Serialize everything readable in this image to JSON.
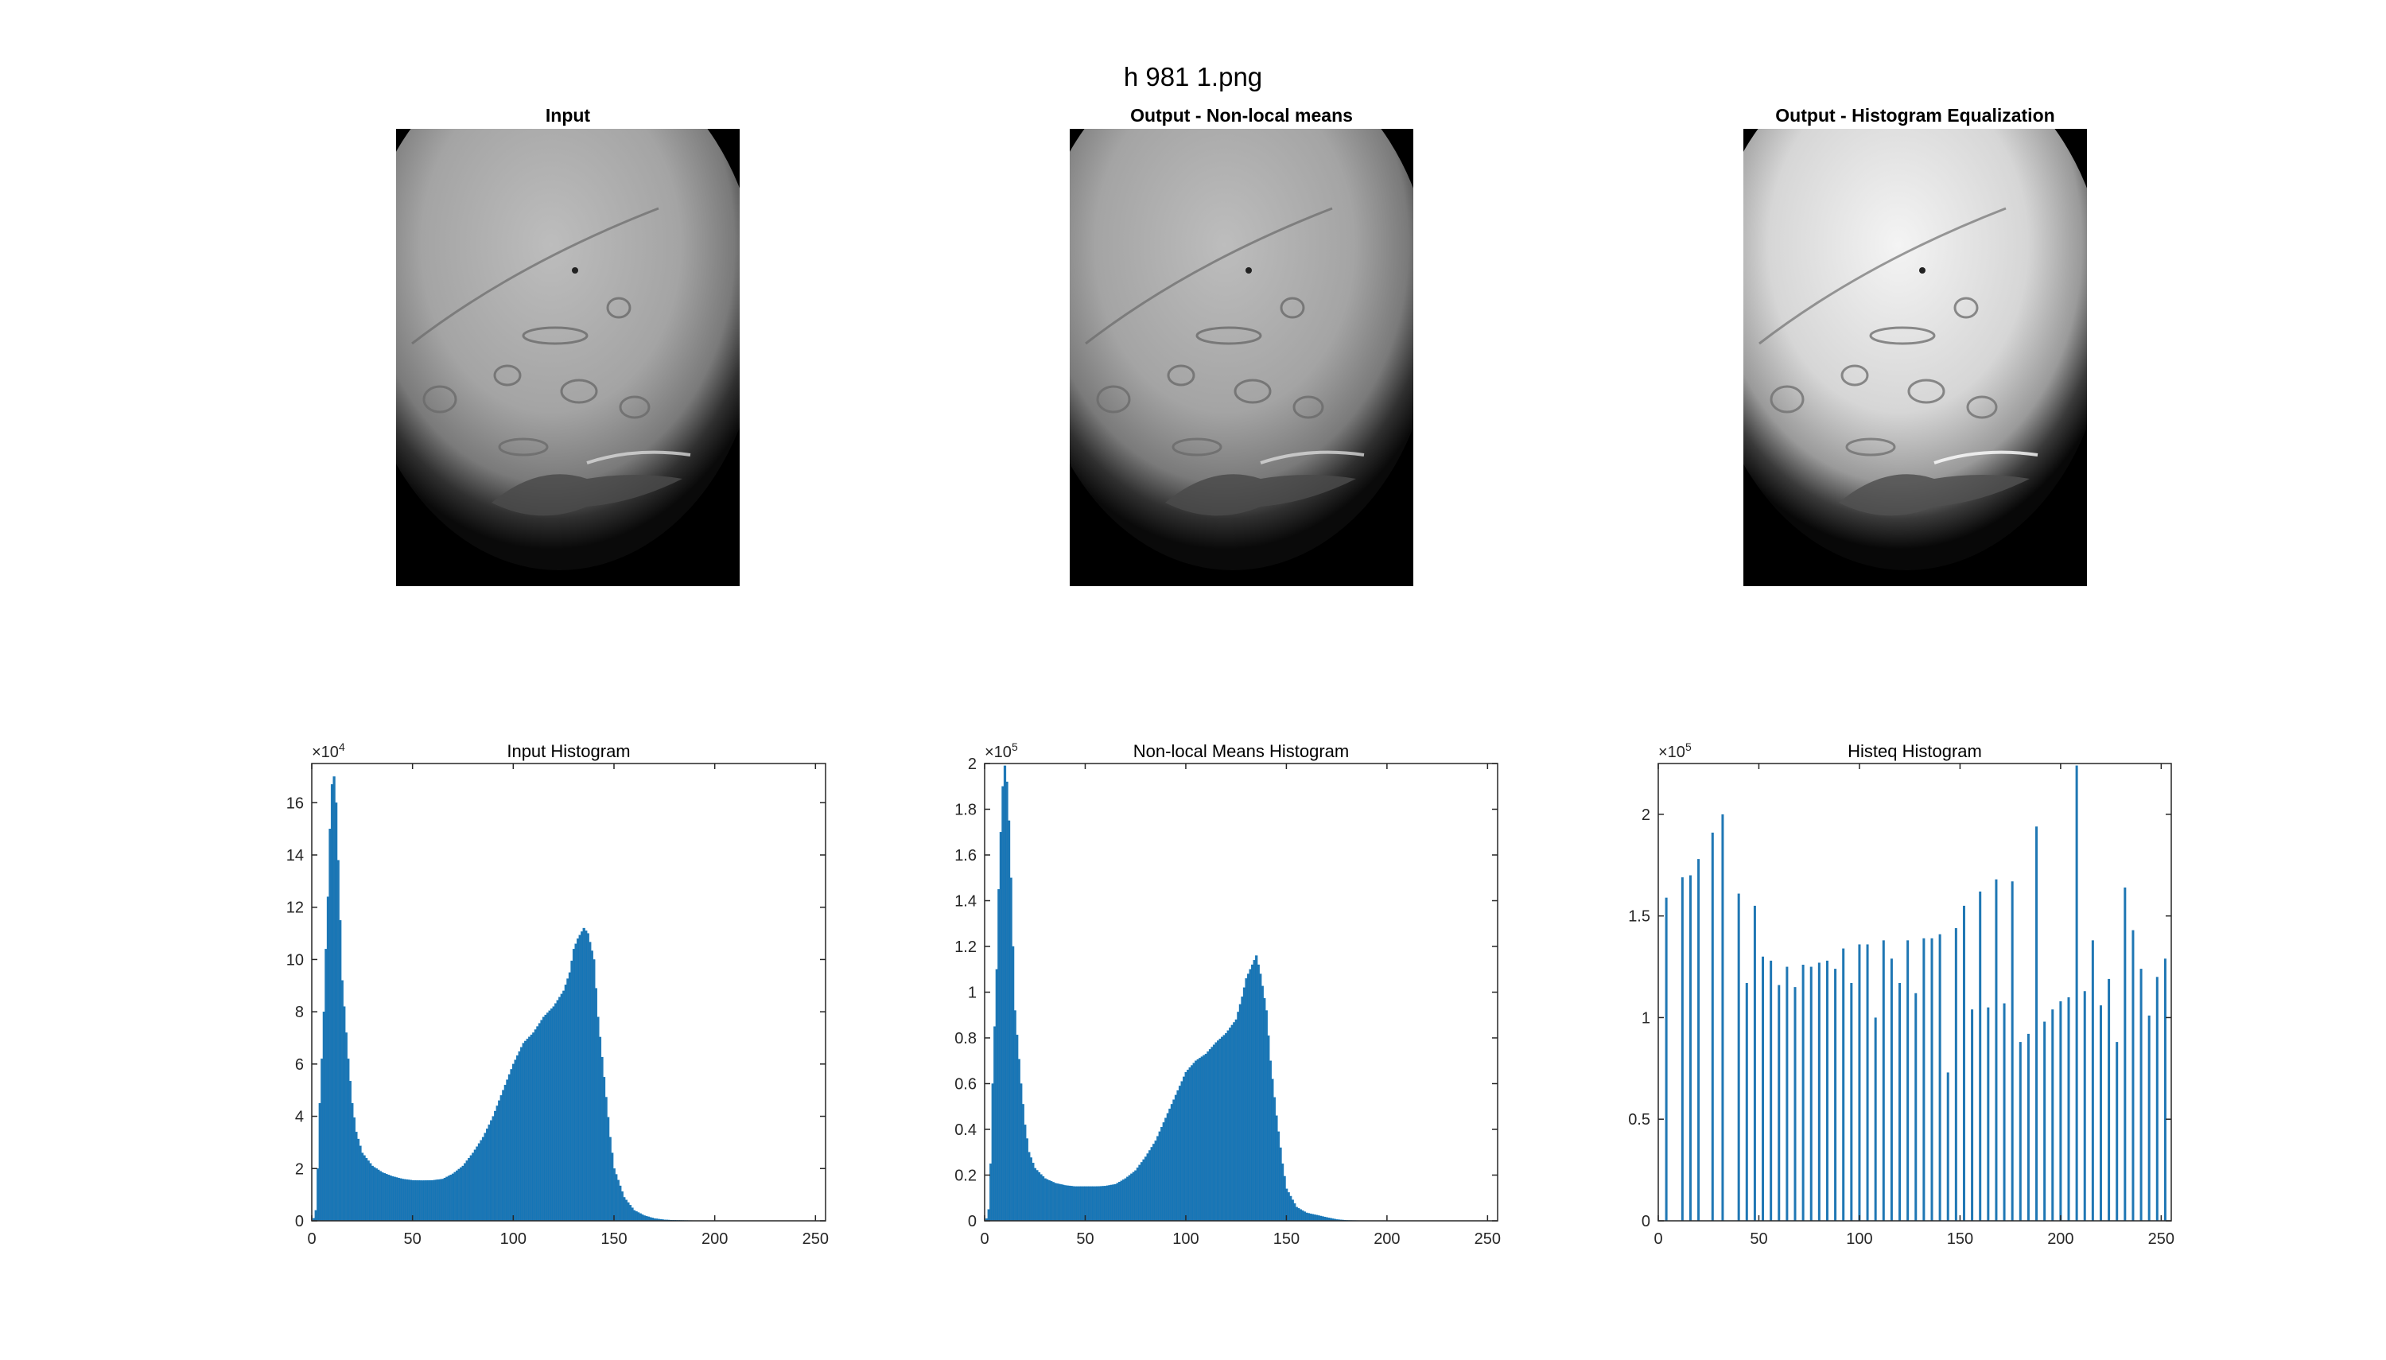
{
  "figure": {
    "title": "h 981 1.png"
  },
  "images": [
    {
      "title": "Input",
      "style": "original"
    },
    {
      "title": "Output - Non-local means",
      "style": "original"
    },
    {
      "title": "Output - Histogram Equalization",
      "style": "equalized"
    }
  ],
  "colors": {
    "bar": "#1f77b4",
    "bar_edge": "#0072bd",
    "axis": "#262626",
    "image_bg": "#000000"
  },
  "chart_data": [
    {
      "type": "bar",
      "title": "Input Histogram",
      "xlim": [
        0,
        255
      ],
      "ylim": [
        0,
        175000
      ],
      "x_ticks": [
        0,
        50,
        100,
        150,
        200,
        250
      ],
      "y_ticks": [
        0,
        20000,
        40000,
        60000,
        80000,
        100000,
        120000,
        140000,
        160000
      ],
      "y_tick_labels": [
        "0",
        "2",
        "4",
        "6",
        "8",
        "10",
        "12",
        "14",
        "16"
      ],
      "exponent_label": "×10",
      "exponent_power": "4",
      "bar_style": "dense",
      "x": [
        1,
        2,
        3,
        4,
        5,
        6,
        7,
        8,
        9,
        10,
        11,
        12,
        13,
        14,
        15,
        18,
        20,
        22,
        25,
        30,
        35,
        40,
        45,
        50,
        55,
        60,
        65,
        70,
        75,
        80,
        85,
        90,
        95,
        100,
        105,
        110,
        115,
        120,
        125,
        128,
        130,
        132,
        135,
        137,
        140,
        142,
        145,
        148,
        150,
        155,
        160,
        165,
        170,
        175,
        180,
        190,
        200,
        220,
        240,
        255
      ],
      "values": [
        1000,
        4000,
        20000,
        45000,
        62000,
        80000,
        104000,
        124000,
        150000,
        167000,
        170000,
        160000,
        138000,
        115000,
        92000,
        62000,
        45000,
        34000,
        26000,
        21000,
        18500,
        17000,
        16000,
        15500,
        15400,
        15500,
        16000,
        18000,
        21000,
        26000,
        32000,
        40000,
        50000,
        60000,
        68000,
        72000,
        78000,
        82000,
        88000,
        95000,
        104000,
        108000,
        112000,
        110000,
        100000,
        78000,
        55000,
        32000,
        20000,
        9000,
        4000,
        2000,
        900,
        400,
        200,
        100,
        50,
        10,
        5,
        0
      ]
    },
    {
      "type": "bar",
      "title": "Non-local Means Histogram",
      "xlim": [
        0,
        255
      ],
      "ylim": [
        0,
        200000
      ],
      "x_ticks": [
        0,
        50,
        100,
        150,
        200,
        250
      ],
      "y_ticks": [
        0,
        20000,
        40000,
        60000,
        80000,
        100000,
        120000,
        140000,
        160000,
        180000,
        200000
      ],
      "y_tick_labels": [
        "0",
        "0.2",
        "0.4",
        "0.6",
        "0.8",
        "1",
        "1.2",
        "1.4",
        "1.6",
        "1.8",
        "2"
      ],
      "exponent_label": "×10",
      "exponent_power": "5",
      "bar_style": "dense",
      "x": [
        1,
        2,
        3,
        4,
        5,
        6,
        7,
        8,
        9,
        10,
        11,
        12,
        13,
        14,
        15,
        18,
        20,
        22,
        25,
        30,
        35,
        40,
        45,
        50,
        55,
        60,
        65,
        70,
        75,
        80,
        85,
        90,
        95,
        100,
        105,
        110,
        115,
        120,
        125,
        128,
        130,
        132,
        135,
        137,
        140,
        142,
        145,
        148,
        150,
        155,
        160,
        165,
        170,
        175,
        180,
        190,
        200,
        220,
        240,
        255
      ],
      "values": [
        1000,
        5000,
        25000,
        60000,
        85000,
        110000,
        145000,
        170000,
        190000,
        199000,
        192000,
        175000,
        150000,
        120000,
        92000,
        60000,
        42000,
        30000,
        23000,
        18500,
        16500,
        15500,
        15000,
        15000,
        15000,
        15200,
        16000,
        18500,
        22000,
        28000,
        35000,
        45000,
        55000,
        65000,
        70000,
        73000,
        78000,
        82000,
        88000,
        98000,
        106000,
        110000,
        116000,
        108000,
        92000,
        70000,
        46000,
        25000,
        14000,
        6000,
        3500,
        2500,
        1500,
        600,
        200,
        80,
        40,
        10,
        5,
        0
      ]
    },
    {
      "type": "bar",
      "title": "Histeq Histogram",
      "xlim": [
        0,
        255
      ],
      "ylim": [
        0,
        225000
      ],
      "x_ticks": [
        0,
        50,
        100,
        150,
        200,
        250
      ],
      "y_ticks": [
        0,
        50000,
        100000,
        150000,
        200000
      ],
      "y_tick_labels": [
        "0",
        "0.5",
        "1",
        "1.5",
        "2"
      ],
      "exponent_label": "×10",
      "exponent_power": "5",
      "bar_style": "sparse",
      "x": [
        4,
        12,
        16,
        20,
        27,
        32,
        40,
        44,
        48,
        52,
        56,
        60,
        64,
        68,
        72,
        76,
        80,
        84,
        88,
        92,
        96,
        100,
        104,
        108,
        112,
        116,
        120,
        124,
        128,
        132,
        136,
        140,
        144,
        148,
        152,
        156,
        160,
        164,
        168,
        172,
        176,
        180,
        184,
        188,
        192,
        196,
        200,
        204,
        208,
        212,
        216,
        220,
        224,
        228,
        232,
        236,
        240,
        244,
        248,
        252,
        255
      ],
      "values": [
        159000,
        169000,
        170000,
        178000,
        191000,
        200000,
        161000,
        117000,
        155000,
        130000,
        128000,
        116000,
        125000,
        115000,
        126000,
        125000,
        127000,
        128000,
        124000,
        134000,
        117000,
        136000,
        136000,
        100000,
        138000,
        129000,
        117000,
        138000,
        112000,
        139000,
        139000,
        141000,
        73000,
        144000,
        155000,
        104000,
        162000,
        105000,
        168000,
        107000,
        167000,
        88000,
        92000,
        194000,
        98000,
        104000,
        108000,
        110000,
        224000,
        113000,
        138000,
        106000,
        119000,
        88000,
        164000,
        143000,
        124000,
        101000,
        120000,
        129000,
        0
      ]
    }
  ]
}
